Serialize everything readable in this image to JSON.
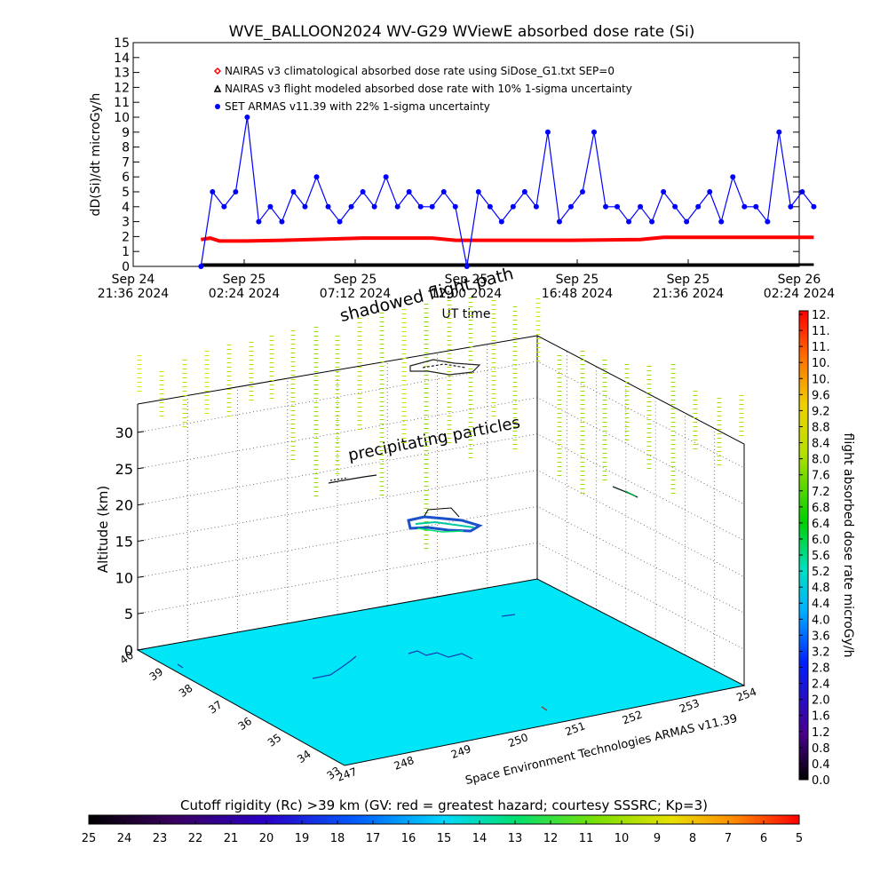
{
  "chart_data": [
    {
      "type": "line",
      "title": "WVE_BALLOON2024 WV-G29 WViewE absorbed dose rate (Si)",
      "ylabel": "dD(Si)/dt microGy/h",
      "xlabel": "UT time",
      "ylim": [
        0,
        15
      ],
      "yticks": [
        "0",
        "1",
        "2",
        "3",
        "4",
        "5",
        "6",
        "7",
        "8",
        "9",
        "10",
        "11",
        "12",
        "13",
        "14",
        "15"
      ],
      "xticks": [
        {
          "line1": "Sep 24",
          "line2": "21:36 2024"
        },
        {
          "line1": "Sep 25",
          "line2": "02:24 2024"
        },
        {
          "line1": "Sep 25",
          "line2": "07:12 2024"
        },
        {
          "line1": "Sep 25",
          "line2": "12:00 2024"
        },
        {
          "line1": "Sep 25",
          "line2": "16:48 2024"
        },
        {
          "line1": "Sep 25",
          "line2": "21:36 2024"
        },
        {
          "line1": "Sep 26",
          "line2": "02:24 2024"
        }
      ],
      "legend": [
        {
          "label": "NAIRAS v3 climatological absorbed dose rate using SiDose_G1.txt SEP=0",
          "color": "#ff0000"
        },
        {
          "label": "NAIRAS v3 flight modeled absorbed dose rate with 10% 1-sigma uncertainty",
          "color": "#000000"
        },
        {
          "label": "SET ARMAS v11.39 with 22% 1-sigma uncertainty",
          "color": "#0000ff"
        }
      ],
      "legend_position": "top-left",
      "annotations": [
        "shadowed flight path"
      ],
      "series": [
        {
          "name": "NAIRAS v3 climatological absorbed dose rate using SiDose_G1.txt SEP=0",
          "color": "#ff0000",
          "x": [
            0.0,
            0.4,
            0.8,
            2.0,
            3.5,
            7.0,
            10.0,
            11.0,
            13.0,
            16.0,
            19.0,
            20.0,
            22.0,
            24.0,
            26.5
          ],
          "values": [
            1.8,
            1.9,
            1.7,
            1.7,
            1.75,
            1.9,
            1.9,
            1.75,
            1.75,
            1.75,
            1.8,
            1.95,
            1.95,
            1.95,
            1.95
          ]
        },
        {
          "name": "NAIRAS v3 flight modeled absorbed dose rate with 10% 1-sigma uncertainty",
          "color": "#000000",
          "x": [
            0.0,
            26.5
          ],
          "values": [
            0.0,
            0.0
          ]
        },
        {
          "name": "SET ARMAS v11.39 with 22% 1-sigma uncertainty",
          "color": "#0000ff",
          "x": [
            0.0,
            0.5,
            1.0,
            1.5,
            2.0,
            2.5,
            3.0,
            3.5,
            4.0,
            4.5,
            5.0,
            5.5,
            6.0,
            6.5,
            7.0,
            7.5,
            8.0,
            8.5,
            9.0,
            9.5,
            10.0,
            10.5,
            11.0,
            11.5,
            12.0,
            12.5,
            13.0,
            13.5,
            14.0,
            14.5,
            15.0,
            15.5,
            16.0,
            16.5,
            17.0,
            17.5,
            18.0,
            18.5,
            19.0,
            19.5,
            20.0,
            20.5,
            21.0,
            21.5,
            22.0,
            22.5,
            23.0,
            23.5,
            24.0,
            24.5,
            25.0,
            25.5,
            26.0,
            26.5
          ],
          "values": [
            0,
            5,
            4,
            5,
            10,
            3,
            4,
            3,
            5,
            4,
            6,
            4,
            3,
            4,
            5,
            4,
            6,
            4,
            5,
            4,
            4,
            5,
            4,
            0,
            5,
            4,
            3,
            4,
            5,
            4,
            9,
            3,
            4,
            5,
            9,
            4,
            4,
            3,
            4,
            3,
            5,
            4,
            3,
            4,
            5,
            3,
            6,
            4,
            4,
            3,
            9,
            4,
            5,
            4
          ]
        }
      ]
    },
    {
      "type": "scatter",
      "subtype": "3d-trajectory",
      "zlabel": "Altitude (km)",
      "zticks": [
        "0",
        "5",
        "10",
        "15",
        "20",
        "25",
        "30"
      ],
      "xticks_lon": [
        "247",
        "248",
        "249",
        "250",
        "251",
        "252",
        "253",
        "254"
      ],
      "yticks_lat": [
        "33",
        "34",
        "35",
        "36",
        "37",
        "38",
        "39",
        "40"
      ],
      "annotations": [
        "precipitating particles",
        "Space Environment Technologies ARMAS v11.39"
      ],
      "colorbar": {
        "label": "flight absorbed dose rate microGy/h",
        "ticks": [
          "0.0",
          "0.4",
          "0.8",
          "1.2",
          "1.6",
          "2.0",
          "2.4",
          "2.8",
          "3.2",
          "3.6",
          "4.0",
          "4.4",
          "4.8",
          "5.2",
          "5.6",
          "6.0",
          "6.4",
          "6.8",
          "7.2",
          "7.6",
          "8.0",
          "8.4",
          "8.8",
          "9.2",
          "9.6",
          "10.",
          "10.",
          "11.",
          "11.",
          "12."
        ]
      },
      "cutoff_rigidity_bar": {
        "label": "Cutoff rigidity (Rc) >39 km (GV: red = greatest hazard; courtesy SSSRC; Kp=3)",
        "ticks": [
          "25",
          "24",
          "23",
          "22",
          "21",
          "20",
          "19",
          "18",
          "17",
          "16",
          "15",
          "14",
          "13",
          "12",
          "11",
          "10",
          "9",
          "8",
          "7",
          "6",
          "5"
        ]
      }
    }
  ]
}
